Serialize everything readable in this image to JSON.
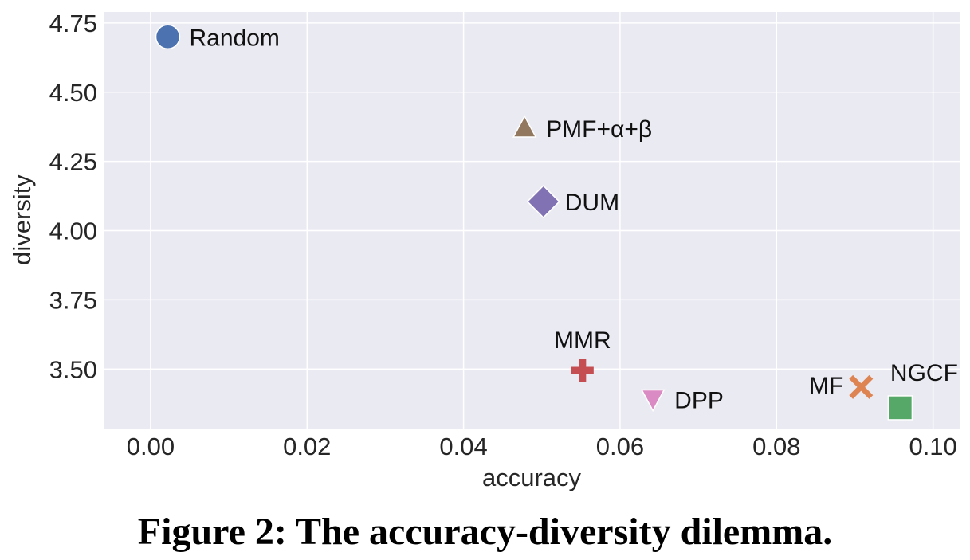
{
  "caption": "Figure 2: The accuracy-diversity dilemma.",
  "chart_data": {
    "type": "scatter",
    "title": "",
    "xlabel": "accuracy",
    "ylabel": "diversity",
    "xlim": [
      -0.006,
      0.1035
    ],
    "ylim": [
      3.285,
      4.79
    ],
    "grid": true,
    "x_ticks": [
      "0.00",
      "0.02",
      "0.04",
      "0.06",
      "0.08",
      "0.10"
    ],
    "x_tick_values": [
      0.0,
      0.02,
      0.04,
      0.06,
      0.08,
      0.1
    ],
    "y_ticks": [
      "3.50",
      "3.75",
      "4.00",
      "4.25",
      "4.50",
      "4.75"
    ],
    "y_tick_values": [
      3.5,
      3.75,
      4.0,
      4.25,
      4.5,
      4.75
    ],
    "background_color": "#eaeaf2",
    "grid_color": "#ffffff",
    "points": [
      {
        "label": "Random",
        "x": 0.0022,
        "y": 4.7,
        "marker": "circle",
        "color": "#4c72b0",
        "label_pos": "right"
      },
      {
        "label": "PMF+α+β",
        "x": 0.0478,
        "y": 4.37,
        "marker": "triangle-up",
        "color": "#937860",
        "label_pos": "right"
      },
      {
        "label": "DUM",
        "x": 0.0502,
        "y": 4.105,
        "marker": "diamond",
        "color": "#8172b3",
        "label_pos": "right"
      },
      {
        "label": "MMR",
        "x": 0.0552,
        "y": 3.495,
        "marker": "plus",
        "color": "#c44e52",
        "label_pos": "above"
      },
      {
        "label": "DPP",
        "x": 0.0642,
        "y": 3.39,
        "marker": "triangle-down",
        "color": "#da8bc3",
        "label_pos": "right"
      },
      {
        "label": "MF",
        "x": 0.0908,
        "y": 3.435,
        "marker": "x",
        "color": "#dd8452",
        "label_pos": "left"
      },
      {
        "label": "NGCF",
        "x": 0.0958,
        "y": 3.36,
        "marker": "square",
        "color": "#55a868",
        "label_pos": "above"
      }
    ]
  }
}
